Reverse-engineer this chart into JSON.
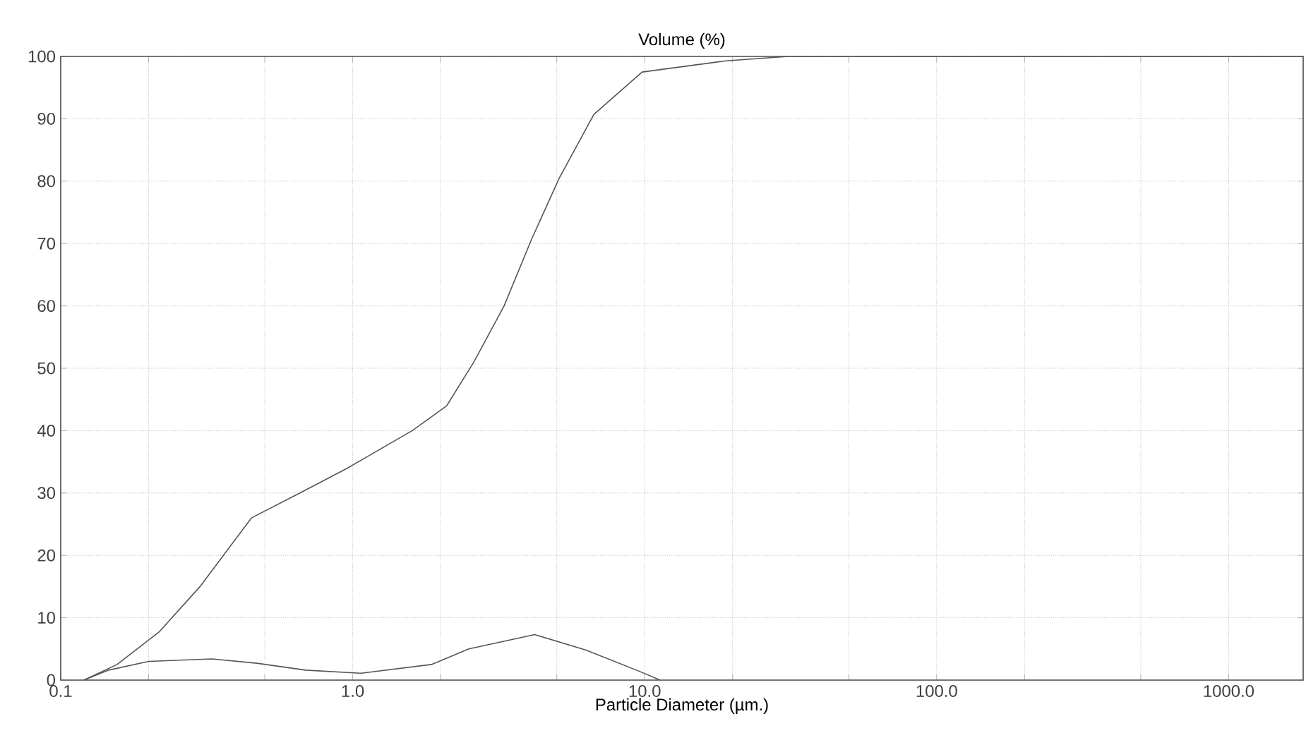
{
  "chart_data": {
    "type": "line",
    "title": "Volume (%)",
    "xlabel": "Particle Diameter (µm.)",
    "log": "x",
    "grid": true,
    "marker": "none",
    "line_style": "solid",
    "xlim": [
      0.1,
      1800
    ],
    "ylim": [
      0,
      100
    ],
    "xticks": [
      0.1,
      {
        "value": 0.2,
        "label": null
      },
      {
        "value": 0.5,
        "label": null
      },
      {
        "value": 1,
        "label": "1.0"
      },
      {
        "value": 2,
        "label": null
      },
      {
        "value": 5,
        "label": null
      },
      {
        "value": 10,
        "label": "10.0"
      },
      {
        "value": 20,
        "label": null
      },
      {
        "value": 50,
        "label": null
      },
      {
        "value": 100,
        "label": "100.0"
      },
      {
        "value": 200,
        "label": null
      },
      {
        "value": 500,
        "label": null
      },
      {
        "value": 1000,
        "label": "1000.0"
      }
    ],
    "yticks": [
      0,
      10,
      20,
      30,
      40,
      50,
      60,
      70,
      80,
      90,
      100
    ],
    "series": [
      {
        "color": "#555555",
        "x": [
          0.12,
          0.156,
          0.217,
          0.3,
          0.45,
          0.66,
          0.96,
          1.6,
          2.1,
          2.6,
          3.3,
          4.1,
          5.1,
          6.7,
          9.8,
          19,
          31,
          100,
          1000,
          1800
        ],
        "values": [
          0,
          2.5,
          7.7,
          15,
          26,
          30,
          34,
          40,
          44,
          51,
          60,
          70.7,
          80.5,
          90.7,
          97.5,
          99.3,
          100,
          100,
          100,
          100
        ]
      },
      {
        "color": "#555555",
        "x": [
          0.12,
          0.146,
          0.2,
          0.33,
          0.47,
          0.69,
          1.07,
          1.86,
          2.5,
          4.2,
          6.3,
          9.6,
          11.3
        ],
        "values": [
          0,
          1.6,
          3.0,
          3.4,
          2.7,
          1.6,
          1.1,
          2.5,
          5,
          7.3,
          4.8,
          1.4,
          0
        ]
      }
    ]
  }
}
